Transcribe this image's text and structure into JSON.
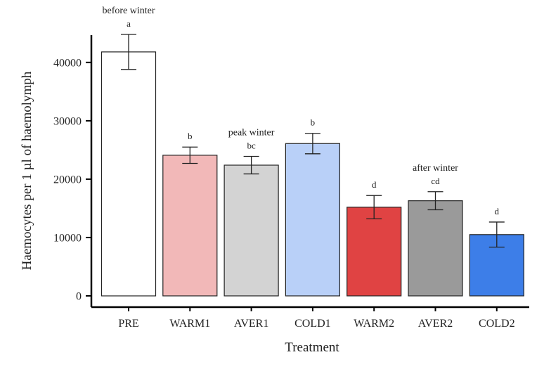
{
  "chart_data": {
    "type": "bar",
    "xlabel": "Treatment",
    "ylabel": "Haemocytes per 1 µl of haemolymph",
    "ylim": [
      0,
      46000
    ],
    "yticks": [
      0,
      10000,
      20000,
      30000,
      40000
    ],
    "categories": [
      "PRE",
      "WARM1",
      "AVER1",
      "COLD1",
      "WARM2",
      "AVER2",
      "COLD2"
    ],
    "values": [
      41800,
      24100,
      22400,
      26100,
      15200,
      16300,
      10500
    ],
    "errors": [
      3000,
      1400,
      1500,
      1750,
      2000,
      1550,
      2150
    ],
    "significance": [
      "a",
      "b",
      "bc",
      "b",
      "d",
      "cd",
      "d"
    ],
    "colors": [
      "#ffffff",
      "#f2b8b8",
      "#d3d3d3",
      "#b9d0f8",
      "#e04343",
      "#9a9a9a",
      "#3d7ee8"
    ],
    "annotations": [
      {
        "category_index": 0,
        "text": "before winter"
      },
      {
        "category_index": 2,
        "text": "peak winter"
      },
      {
        "category_index": 5,
        "text": "after winter"
      }
    ],
    "grid": false,
    "legend": "none"
  }
}
